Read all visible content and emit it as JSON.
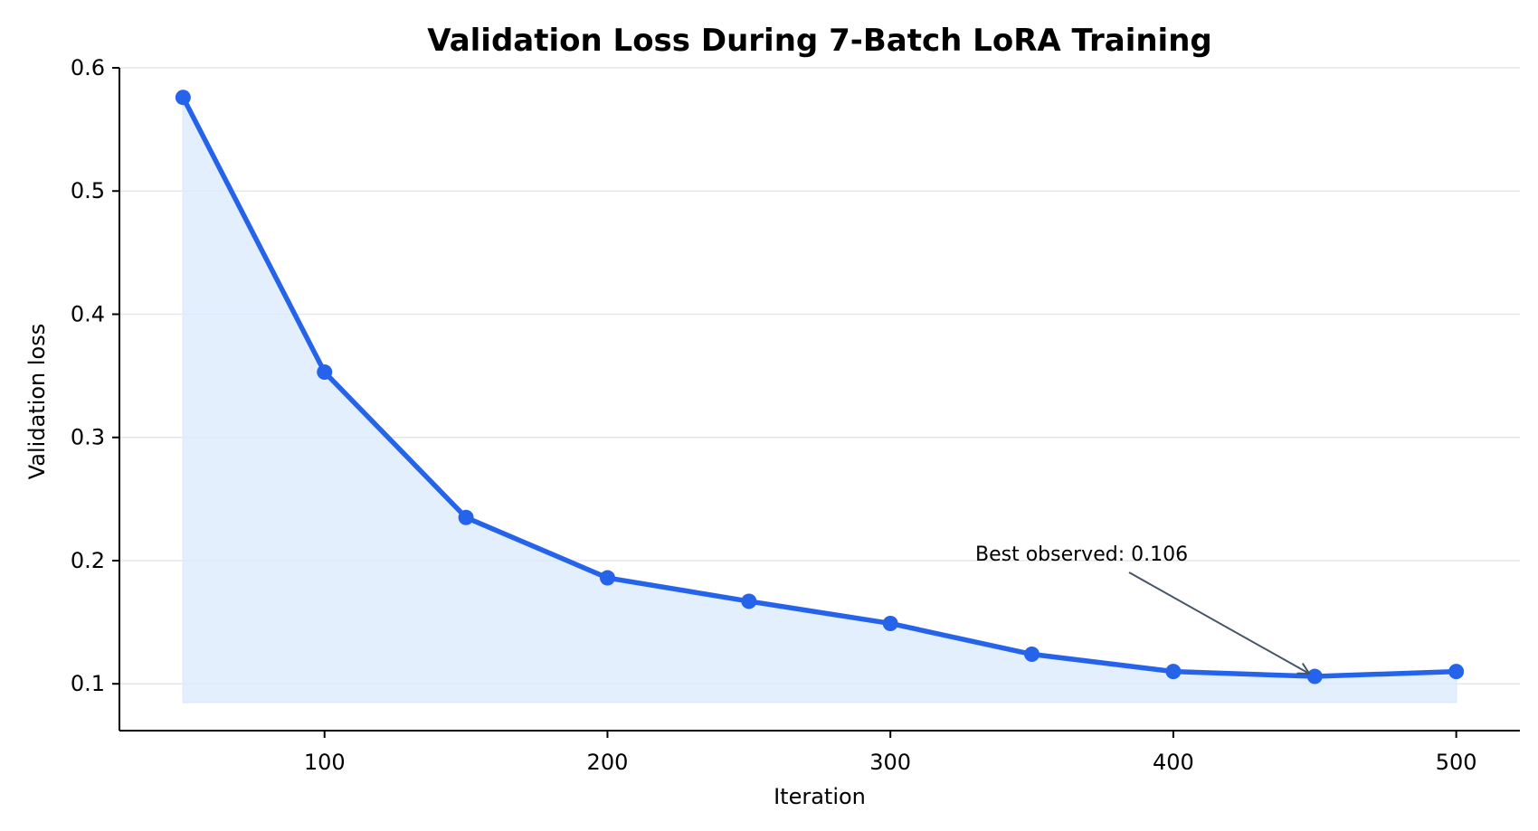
{
  "chart_data": {
    "type": "line",
    "title": "Validation Loss During 7-Batch LoRA Training",
    "xlabel": "Iteration",
    "ylabel": "Validation loss",
    "x": [
      50,
      100,
      150,
      200,
      250,
      300,
      350,
      400,
      450,
      500
    ],
    "series": [
      {
        "values": [
          0.576,
          0.353,
          0.235,
          0.186,
          0.167,
          0.149,
          0.124,
          0.11,
          0.106,
          0.11
        ]
      }
    ],
    "xlim": [
      27.5,
      522.5
    ],
    "ylim": [
      0.062,
      0.6
    ],
    "xticks": [
      100,
      200,
      300,
      400,
      500
    ],
    "yticks": [
      0.1,
      0.2,
      0.3,
      0.4,
      0.5,
      0.6
    ],
    "xtick_labels": [
      "100",
      "200",
      "300",
      "400",
      "500"
    ],
    "ytick_labels": [
      "0.1",
      "0.2",
      "0.3",
      "0.4",
      "0.5",
      "0.6"
    ],
    "fill_baseline": 0.085,
    "grid": "horizontal",
    "annotation": {
      "text": "Best observed: 0.106",
      "x": 450,
      "y": 0.106
    },
    "colors": {
      "line": "#2563eb",
      "fill": "#dbeafe",
      "grid": "#e5e7eb",
      "arrow": "#475569",
      "axis": "#000000"
    }
  }
}
